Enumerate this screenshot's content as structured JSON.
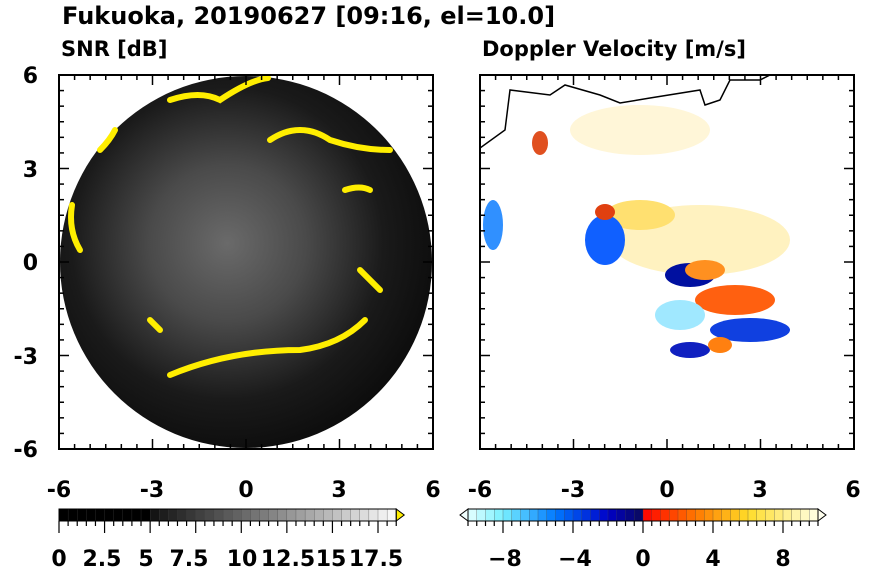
{
  "title": "Fukuoka, 20190627 [09:16, el=10.0]",
  "chart_data": [
    {
      "type": "heatmap",
      "title": "SNR [dB]",
      "xlim": [
        -6,
        6
      ],
      "ylim": [
        -6,
        6
      ],
      "xticks": [
        "-6",
        "-3",
        "0",
        "3",
        "6"
      ],
      "yticks": [
        "-6",
        "-3",
        "0",
        "3",
        "6"
      ],
      "colorbar": {
        "min": 0,
        "max": 18.5,
        "step": 0.5,
        "ticks": [
          "0",
          "2.5",
          "5",
          "7.5",
          "10",
          "12.5",
          "15",
          "17.5"
        ],
        "tick_values": [
          0,
          2.5,
          5,
          7.5,
          10,
          12.5,
          15,
          17.5
        ],
        "over_color": "#ffee00"
      },
      "high_snr_color": "#ffee00"
    },
    {
      "type": "heatmap",
      "title": "Doppler Velocity [m/s]",
      "xlim": [
        -6,
        6
      ],
      "ylim": [
        -6,
        6
      ],
      "xticks": [
        "-6",
        "-3",
        "0",
        "3",
        "6"
      ],
      "colorbar": {
        "min": -10,
        "max": 10,
        "step": 0.5,
        "ticks": [
          "−8",
          "−4",
          "0",
          "4",
          "8"
        ],
        "tick_values": [
          -8,
          -4,
          0,
          4,
          8
        ]
      }
    }
  ]
}
